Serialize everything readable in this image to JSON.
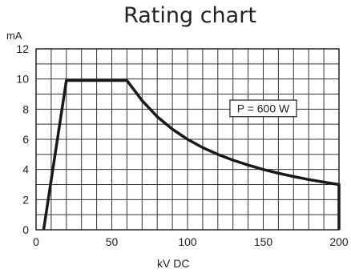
{
  "chart_data": {
    "type": "line",
    "title": "Rating chart",
    "xlabel": "kV DC",
    "ylabel": "mA",
    "xlim": [
      0,
      200
    ],
    "ylim": [
      0,
      12
    ],
    "xticks": [
      0,
      50,
      100,
      150,
      200
    ],
    "yticks": [
      0,
      2,
      4,
      6,
      8,
      10,
      12
    ],
    "grid": true,
    "annotation": "P = 600 W",
    "series": [
      {
        "x": [
          5,
          20,
          60,
          70,
          80,
          90,
          100,
          110,
          120,
          130,
          140,
          150,
          160,
          170,
          180,
          190,
          200,
          200
        ],
        "y": [
          0,
          9.9,
          9.9,
          8.57,
          7.5,
          6.67,
          6.0,
          5.45,
          5.0,
          4.62,
          4.29,
          4.0,
          3.75,
          3.53,
          3.33,
          3.16,
          3.0,
          0
        ]
      }
    ]
  }
}
